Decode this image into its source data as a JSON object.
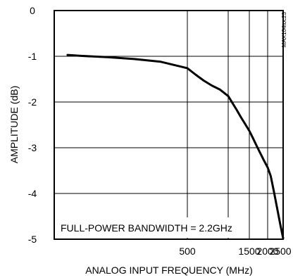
{
  "chart_data": {
    "type": "line",
    "xlabel": "ANALOG INPUT FREQUENCY (MHz)",
    "ylabel": "AMPLITUDE (dB)",
    "ylim": [
      -5,
      0
    ],
    "xlim": [
      0,
      2500
    ],
    "x_scale": "log",
    "x_tick_labels": [
      "500",
      "1500",
      "2000",
      "2500"
    ],
    "y_tick_labels": [
      "0",
      "-1",
      "-2",
      "-3",
      "-4",
      "-5"
    ],
    "grid": true,
    "annotation": "FULL-POWER BANDWIDTH = 2.2GHz",
    "side_label": "MAX104toc23",
    "series": [
      {
        "x": [
          50,
          100,
          200,
          300,
          400,
          500,
          600,
          700,
          800,
          900,
          1000,
          1100,
          1200,
          1300,
          1400,
          1500,
          1600,
          1700,
          1800,
          1900,
          2000,
          2100,
          2200,
          2300,
          2400,
          2500
        ],
        "y": [
          -0.97,
          -0.99,
          -1.02,
          -1.06,
          -1.12,
          -1.26,
          -1.4,
          -1.53,
          -1.64,
          -1.73,
          -1.87,
          -2.02,
          -2.17,
          -2.33,
          -2.48,
          -2.63,
          -2.79,
          -2.96,
          -3.12,
          -3.28,
          -3.43,
          -3.62,
          -3.95,
          -4.3,
          -4.65,
          -4.98
        ]
      }
    ]
  }
}
